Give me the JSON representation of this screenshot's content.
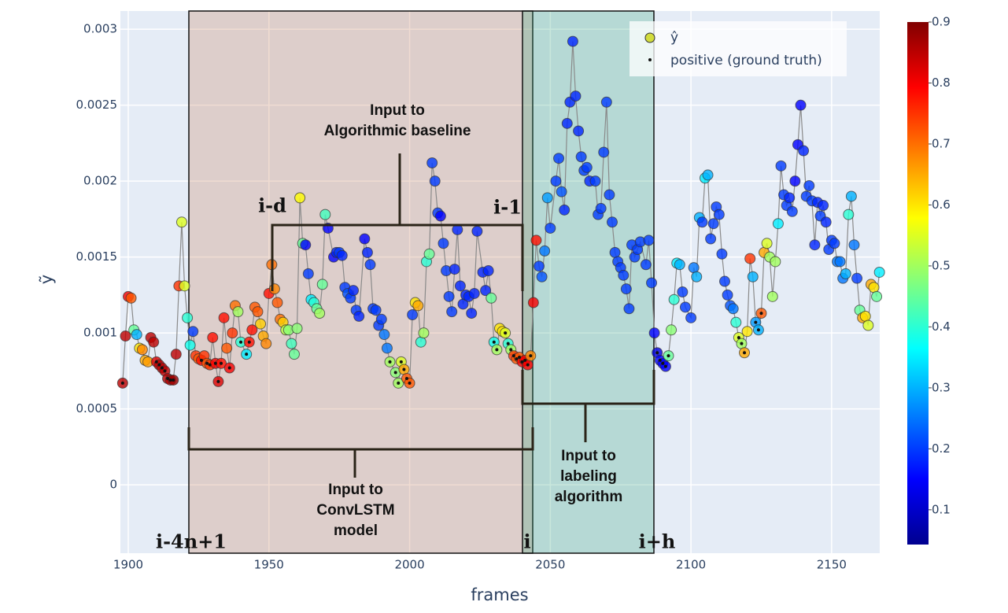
{
  "chart_data": {
    "type": "scatter",
    "xlabel": "frames",
    "ylabel": "ỹ",
    "xlim": [
      1897.2,
      2167.1
    ],
    "ylim": [
      -0.00045,
      0.00312
    ],
    "xticks": [
      1900,
      1950,
      2000,
      2050,
      2100,
      2150
    ],
    "yticks": [
      0,
      0.0005,
      0.001,
      0.0015,
      0.002,
      0.0025,
      0.003
    ],
    "grid": true,
    "colorscale": "Jet",
    "cmin": 0.043,
    "cmax": 0.9,
    "colorbar_ticks": [
      0.1,
      0.2,
      0.3,
      0.4,
      0.5,
      0.6,
      0.7,
      0.8,
      0.9
    ],
    "legend_position": "upper right",
    "line_color": "#8a8a8a",
    "legend_marker_color": "#d2dc3c",
    "series": [
      {
        "name": "ŷ",
        "x": [
          1898,
          1899,
          1900,
          1901,
          1902,
          1903,
          1904,
          1905,
          1906,
          1907,
          1908,
          1909,
          1910,
          1911,
          1912,
          1913,
          1914,
          1915,
          1916,
          1917,
          1918,
          1919,
          1920,
          1921,
          1922,
          1923,
          1924,
          1925,
          1926,
          1927,
          1928,
          1929,
          1930,
          1931,
          1932,
          1933,
          1934,
          1935,
          1936,
          1937,
          1938,
          1939,
          1940,
          1942,
          1943,
          1944,
          1945,
          1946,
          1947,
          1948,
          1949,
          1950,
          1951,
          1952,
          1953,
          1954,
          1955,
          1956,
          1957,
          1958,
          1959,
          1960,
          1961,
          1962,
          1963,
          1964,
          1965,
          1966,
          1967,
          1968,
          1969,
          1970,
          1971,
          1973,
          1974,
          1975,
          1976,
          1977,
          1978,
          1979,
          1980,
          1981,
          1982,
          1984,
          1985,
          1986,
          1987,
          1988,
          1989,
          1990,
          1991,
          1992,
          1993,
          1995,
          1996,
          1997,
          1998,
          1999,
          2000,
          2001,
          2002,
          2003,
          2004,
          2005,
          2006,
          2007,
          2008,
          2009,
          2010,
          2011,
          2012,
          2013,
          2014,
          2015,
          2016,
          2017,
          2018,
          2019,
          2020,
          2021,
          2022,
          2023,
          2024,
          2026,
          2027,
          2028,
          2029,
          2030,
          2031,
          2032,
          2033,
          2034,
          2035,
          2036,
          2037,
          2038,
          2039,
          2040,
          2041,
          2042,
          2043,
          2044,
          2045,
          2046,
          2047,
          2048,
          2049,
          2050,
          2052,
          2053,
          2054,
          2055,
          2056,
          2057,
          2058,
          2059,
          2060,
          2061,
          2062,
          2063,
          2064,
          2066,
          2067,
          2068,
          2069,
          2070,
          2071,
          2072,
          2073,
          2074,
          2075,
          2076,
          2077,
          2078,
          2079,
          2080,
          2081,
          2082,
          2084,
          2085,
          2086,
          2087,
          2088,
          2089,
          2090,
          2091,
          2092,
          2093,
          2094,
          2095,
          2096,
          2097,
          2098,
          2100,
          2101,
          2102,
          2103,
          2104,
          2105,
          2106,
          2107,
          2108,
          2109,
          2110,
          2111,
          2112,
          2113,
          2114,
          2115,
          2116,
          2117,
          2118,
          2119,
          2120,
          2121,
          2122,
          2123,
          2124,
          2125,
          2126,
          2127,
          2128,
          2129,
          2130,
          2131,
          2132,
          2133,
          2134,
          2135,
          2136,
          2137,
          2138,
          2139,
          2140,
          2141,
          2142,
          2143,
          2144,
          2145,
          2146,
          2147,
          2148,
          2149,
          2150,
          2151,
          2152,
          2153,
          2154,
          2155,
          2156,
          2157,
          2158,
          2159,
          2160,
          2161,
          2162,
          2163,
          2164,
          2165,
          2166,
          2167
        ],
        "values": [
          0.00067,
          0.00098,
          0.00124,
          0.00123,
          0.00102,
          0.00099,
          0.0009,
          0.00089,
          0.00082,
          0.00081,
          0.00097,
          0.00094,
          0.00081,
          0.00079,
          0.00077,
          0.00075,
          0.0007,
          0.00069,
          0.00069,
          0.00086,
          0.00131,
          0.00173,
          0.00131,
          0.0011,
          0.00092,
          0.00101,
          0.00085,
          0.00083,
          0.00082,
          0.00085,
          0.0008,
          0.00079,
          0.00097,
          0.0008,
          0.00068,
          0.0008,
          0.0011,
          0.0009,
          0.00077,
          0.001,
          0.00118,
          0.00114,
          0.00094,
          0.00086,
          0.00094,
          0.00102,
          0.00117,
          0.00114,
          0.00106,
          0.00098,
          0.00093,
          0.00126,
          0.00145,
          0.00129,
          0.0012,
          0.00109,
          0.00107,
          0.00102,
          0.00102,
          0.00093,
          0.00086,
          0.00103,
          0.00189,
          0.00159,
          0.00158,
          0.00139,
          0.00122,
          0.0012,
          0.00116,
          0.00113,
          0.00132,
          0.00178,
          0.00169,
          0.0015,
          0.00153,
          0.00153,
          0.00151,
          0.0013,
          0.00126,
          0.00123,
          0.00128,
          0.00115,
          0.00111,
          0.00162,
          0.00153,
          0.00145,
          0.00116,
          0.00115,
          0.00105,
          0.00109,
          0.00099,
          0.0009,
          0.00081,
          0.00074,
          0.00067,
          0.00081,
          0.00076,
          0.0007,
          0.00067,
          0.00112,
          0.0012,
          0.00118,
          0.00094,
          0.001,
          0.00147,
          0.00152,
          0.00212,
          0.002,
          0.00179,
          0.00177,
          0.00159,
          0.00141,
          0.00124,
          0.00114,
          0.00142,
          0.00168,
          0.00131,
          0.00119,
          0.00125,
          0.00124,
          0.00113,
          0.00126,
          0.00167,
          0.0014,
          0.00128,
          0.00141,
          0.00123,
          0.00094,
          0.00089,
          0.00103,
          0.00101,
          0.001,
          0.00093,
          0.00089,
          0.00085,
          0.00083,
          0.00084,
          0.00081,
          0.00082,
          0.00079,
          0.00085,
          0.0012,
          0.00161,
          0.00144,
          0.00137,
          0.00154,
          0.00189,
          0.00169,
          0.002,
          0.00215,
          0.00193,
          0.00181,
          0.00238,
          0.00252,
          0.00292,
          0.00256,
          0.00233,
          0.00216,
          0.00207,
          0.00209,
          0.002,
          0.002,
          0.00178,
          0.00182,
          0.00219,
          0.00252,
          0.00191,
          0.00173,
          0.00153,
          0.00147,
          0.00143,
          0.00138,
          0.00129,
          0.00116,
          0.00158,
          0.0015,
          0.00155,
          0.0016,
          0.00145,
          0.00161,
          0.00133,
          0.001,
          0.00087,
          0.00082,
          0.0008,
          0.00078,
          0.00085,
          0.00102,
          0.00122,
          0.00146,
          0.00145,
          0.00127,
          0.00117,
          0.0011,
          0.00143,
          0.00137,
          0.00176,
          0.00173,
          0.00202,
          0.00204,
          0.00162,
          0.00172,
          0.00183,
          0.00178,
          0.00152,
          0.00134,
          0.00125,
          0.00118,
          0.00116,
          0.00107,
          0.00097,
          0.00093,
          0.00087,
          0.00101,
          0.00149,
          0.00137,
          0.00107,
          0.00102,
          0.00113,
          0.00153,
          0.00159,
          0.0015,
          0.00124,
          0.00147,
          0.00172,
          0.0021,
          0.00191,
          0.00184,
          0.00189,
          0.0018,
          0.002,
          0.00224,
          0.0025,
          0.0022,
          0.0019,
          0.00197,
          0.00187,
          0.00158,
          0.00186,
          0.00177,
          0.00184,
          0.00173,
          0.00155,
          0.00161,
          0.00159,
          0.00147,
          0.00147,
          0.00136,
          0.00139,
          0.00178,
          0.0019,
          0.00158,
          0.00136,
          0.00115,
          0.0011,
          0.00111,
          0.00105,
          0.00132,
          0.0013,
          0.00124,
          0.0014
        ],
        "color_values": [
          0.85,
          0.85,
          0.8,
          0.72,
          0.45,
          0.3,
          0.6,
          0.68,
          0.65,
          0.66,
          0.85,
          0.85,
          0.82,
          0.85,
          0.85,
          0.85,
          0.85,
          0.85,
          0.88,
          0.85,
          0.75,
          0.55,
          0.55,
          0.4,
          0.38,
          0.2,
          0.75,
          0.72,
          0.78,
          0.75,
          0.72,
          0.75,
          0.78,
          0.8,
          0.82,
          0.78,
          0.78,
          0.72,
          0.8,
          0.75,
          0.7,
          0.5,
          0.4,
          0.35,
          0.78,
          0.78,
          0.72,
          0.72,
          0.62,
          0.65,
          0.68,
          0.78,
          0.7,
          0.68,
          0.72,
          0.7,
          0.62,
          0.52,
          0.48,
          0.42,
          0.45,
          0.48,
          0.58,
          0.45,
          0.15,
          0.2,
          0.35,
          0.4,
          0.45,
          0.5,
          0.45,
          0.42,
          0.15,
          0.15,
          0.18,
          0.2,
          0.18,
          0.2,
          0.22,
          0.2,
          0.18,
          0.2,
          0.18,
          0.15,
          0.18,
          0.2,
          0.2,
          0.2,
          0.2,
          0.2,
          0.25,
          0.25,
          0.5,
          0.48,
          0.5,
          0.55,
          0.65,
          0.72,
          0.72,
          0.2,
          0.6,
          0.65,
          0.4,
          0.5,
          0.4,
          0.45,
          0.2,
          0.2,
          0.2,
          0.15,
          0.2,
          0.2,
          0.2,
          0.2,
          0.18,
          0.18,
          0.18,
          0.18,
          0.18,
          0.18,
          0.18,
          0.18,
          0.18,
          0.18,
          0.18,
          0.18,
          0.45,
          0.38,
          0.5,
          0.6,
          0.6,
          0.55,
          0.4,
          0.5,
          0.75,
          0.72,
          0.72,
          0.8,
          0.8,
          0.8,
          0.68,
          0.8,
          0.78,
          0.2,
          0.22,
          0.25,
          0.28,
          0.2,
          0.2,
          0.2,
          0.22,
          0.18,
          0.18,
          0.18,
          0.18,
          0.18,
          0.18,
          0.2,
          0.2,
          0.2,
          0.18,
          0.2,
          0.2,
          0.2,
          0.2,
          0.2,
          0.2,
          0.2,
          0.2,
          0.2,
          0.2,
          0.2,
          0.2,
          0.2,
          0.2,
          0.2,
          0.2,
          0.2,
          0.2,
          0.2,
          0.2,
          0.15,
          0.12,
          0.15,
          0.15,
          0.15,
          0.45,
          0.48,
          0.4,
          0.35,
          0.3,
          0.2,
          0.2,
          0.2,
          0.25,
          0.3,
          0.3,
          0.2,
          0.35,
          0.3,
          0.2,
          0.2,
          0.2,
          0.2,
          0.2,
          0.2,
          0.2,
          0.22,
          0.25,
          0.4,
          0.55,
          0.5,
          0.65,
          0.6,
          0.75,
          0.3,
          0.28,
          0.3,
          0.72,
          0.65,
          0.55,
          0.5,
          0.5,
          0.5,
          0.35,
          0.2,
          0.2,
          0.2,
          0.18,
          0.2,
          0.15,
          0.15,
          0.15,
          0.18,
          0.2,
          0.2,
          0.2,
          0.18,
          0.18,
          0.2,
          0.18,
          0.18,
          0.2,
          0.2,
          0.2,
          0.25,
          0.25,
          0.25,
          0.3,
          0.4,
          0.3,
          0.25,
          0.2,
          0.45,
          0.65,
          0.6,
          0.55,
          0.65,
          0.6,
          0.45,
          0.35
        ]
      },
      {
        "name": "positive (ground truth)",
        "color": "#111111",
        "x": [
          1898,
          1910,
          1911,
          1912,
          1913,
          1914,
          1915,
          1916,
          1926,
          1928,
          1929,
          1931,
          1932,
          1933,
          1936,
          1940,
          1942,
          1943,
          1993,
          1995,
          1996,
          1997,
          1998,
          1999,
          2000,
          2030,
          2031,
          2034,
          2035,
          2036,
          2037,
          2038,
          2039,
          2040,
          2041,
          2042,
          2043,
          2088,
          2089,
          2090,
          2091,
          2092,
          2117,
          2118,
          2119,
          2123,
          2124,
          2125
        ],
        "values": [
          0.00067,
          0.00081,
          0.00079,
          0.00077,
          0.00075,
          0.0007,
          0.00069,
          0.00069,
          0.00082,
          0.0008,
          0.00079,
          0.0008,
          0.00068,
          0.0008,
          0.00077,
          0.00094,
          0.00086,
          0.00094,
          0.00081,
          0.00074,
          0.00067,
          0.00081,
          0.00076,
          0.0007,
          0.00067,
          0.00094,
          0.00089,
          0.001,
          0.00093,
          0.00089,
          0.00085,
          0.00083,
          0.00084,
          0.00081,
          0.00082,
          0.00079,
          0.00085,
          0.00087,
          0.00082,
          0.0008,
          0.00078,
          0.00085,
          0.00097,
          0.00093,
          0.00087,
          0.00107,
          0.00102,
          0.00113
        ]
      }
    ],
    "index_labels": [
      "i-4n+1",
      "i-d",
      "i-1",
      "i",
      "i+h"
    ],
    "region_labels": {
      "algorithmic": [
        "Input to",
        "Algorithmic baseline"
      ],
      "convlstm": [
        "Input to",
        "ConvLSTM",
        "model"
      ],
      "labeling": [
        "Input to",
        "labeling",
        "algorithm"
      ]
    }
  }
}
